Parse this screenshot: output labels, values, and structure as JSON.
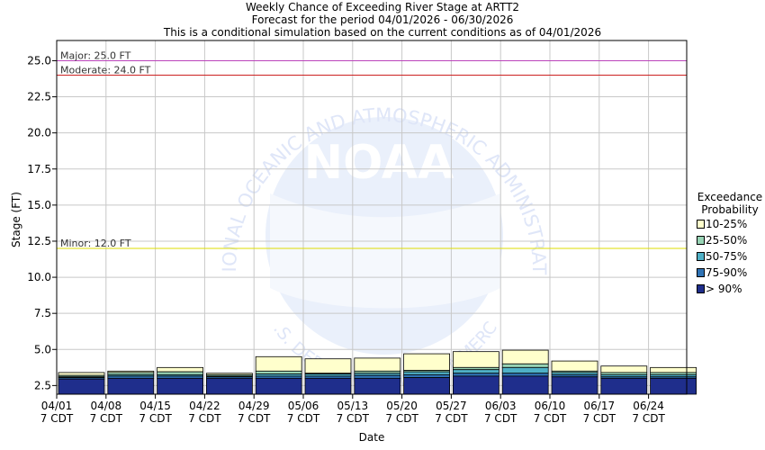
{
  "title_lines": [
    "Weekly Chance of Exceeding River Stage at ARTT2",
    "Forecast for the period 04/01/2026 - 06/30/2026",
    "This is a conditional simulation based on the current conditions as of 04/01/2026"
  ],
  "watermark": {
    "logo_text": "NOAA",
    "ring_text": "NATIONAL OCEANIC AND ATMOSPHERIC ADMINISTRATION",
    "bottom_text": "U.S. DEPARTMENT OF COMMERCE",
    "color": "#e6ecfa"
  },
  "chart_data": {
    "type": "bar",
    "subtype": "stacked-range",
    "xlabel": "Date",
    "ylabel": "Stage (FT)",
    "ylim": [
      1.9,
      26.4
    ],
    "yticks": [
      2.5,
      5.0,
      7.5,
      10.0,
      12.5,
      15.0,
      17.5,
      20.0,
      22.5,
      25.0
    ],
    "ytick_labels": [
      "2.5",
      "5.0",
      "7.5",
      "10.0",
      "12.5",
      "15.0",
      "17.5",
      "20.0",
      "22.5",
      "25.0"
    ],
    "grid": true,
    "categories": [
      "04/01",
      "04/08",
      "04/15",
      "04/22",
      "04/29",
      "05/06",
      "05/13",
      "05/20",
      "05/27",
      "06/03",
      "06/10",
      "06/17",
      "06/24"
    ],
    "category_sublabel": "7 CDT",
    "base": [
      1.9,
      1.9,
      1.9,
      1.9,
      1.9,
      1.9,
      1.9,
      1.9,
      1.9,
      1.9,
      1.9,
      1.9,
      1.9
    ],
    "series": [
      {
        "name": "> 90%",
        "color": "#1f2e8c",
        "tops": [
          2.95,
          3.0,
          3.0,
          3.0,
          3.0,
          3.0,
          3.0,
          3.05,
          3.15,
          3.15,
          3.1,
          3.0,
          3.0
        ]
      },
      {
        "name": "75-90%",
        "color": "#2f73b5",
        "tops": [
          3.05,
          3.15,
          3.15,
          3.1,
          3.15,
          3.15,
          3.2,
          3.25,
          3.35,
          3.35,
          3.25,
          3.1,
          3.1
        ]
      },
      {
        "name": "50-75%",
        "color": "#4fb0c6",
        "tops": [
          3.1,
          3.25,
          3.25,
          3.15,
          3.3,
          3.3,
          3.35,
          3.45,
          3.6,
          3.75,
          3.4,
          3.25,
          3.25
        ]
      },
      {
        "name": "25-50%",
        "color": "#98d4b5",
        "tops": [
          3.2,
          3.4,
          3.45,
          3.25,
          3.5,
          3.35,
          3.5,
          3.55,
          3.75,
          4.0,
          3.5,
          3.4,
          3.4
        ]
      },
      {
        "name": "10-25%",
        "color": "#ffffcc",
        "tops": [
          3.4,
          3.5,
          3.75,
          3.35,
          4.5,
          4.35,
          4.4,
          4.7,
          4.85,
          4.95,
          4.2,
          3.85,
          3.75
        ]
      }
    ],
    "thresholds": [
      {
        "label": "Major: 25.0 FT",
        "value": 25.0,
        "color": "#bb44bb"
      },
      {
        "label": "Moderate: 24.0 FT",
        "value": 24.0,
        "color": "#cc2222"
      },
      {
        "label": "Minor: 12.0 FT",
        "value": 12.0,
        "color": "#dddd00"
      }
    ],
    "legend": {
      "title_lines": [
        "Exceedance",
        "Probability"
      ],
      "placement": "right",
      "items": [
        {
          "label": "10-25%",
          "color": "#ffffcc"
        },
        {
          "label": "25-50%",
          "color": "#98d4b5"
        },
        {
          "label": "50-75%",
          "color": "#4fb0c6"
        },
        {
          "label": "75-90%",
          "color": "#2f73b5"
        },
        {
          "label": "> 90%",
          "color": "#1f2e8c"
        }
      ]
    }
  }
}
